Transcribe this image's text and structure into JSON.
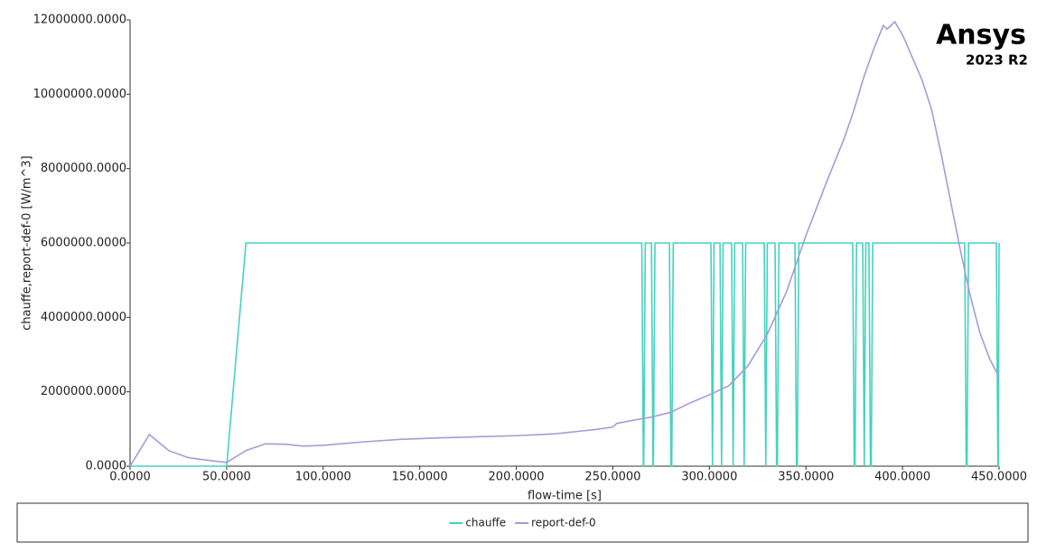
{
  "chart_data": {
    "type": "line",
    "x_label": "flow-time [s]",
    "y_label": "chauffe,report-def-0 [W/m^3]",
    "logo": {
      "brand": "Ansys",
      "version": "2023 R2"
    },
    "xlim": [
      0,
      450
    ],
    "ylim": [
      0,
      12000000
    ],
    "xticks": [
      {
        "value": 0,
        "label": "0.0000"
      },
      {
        "value": 50,
        "label": "50.0000"
      },
      {
        "value": 100,
        "label": "100.0000"
      },
      {
        "value": 150,
        "label": "150.0000"
      },
      {
        "value": 200,
        "label": "200.0000"
      },
      {
        "value": 250,
        "label": "250.0000"
      },
      {
        "value": 300,
        "label": "300.0000"
      },
      {
        "value": 350,
        "label": "350.0000"
      },
      {
        "value": 400,
        "label": "400.0000"
      },
      {
        "value": 450,
        "label": "450.0000"
      }
    ],
    "yticks": [
      {
        "value": 0,
        "label": "0.0000"
      },
      {
        "value": 2000000,
        "label": "2000000.0000"
      },
      {
        "value": 4000000,
        "label": "4000000.0000"
      },
      {
        "value": 6000000,
        "label": "6000000.0000"
      },
      {
        "value": 8000000,
        "label": "8000000.0000"
      },
      {
        "value": 10000000,
        "label": "10000000.0000"
      },
      {
        "value": 12000000,
        "label": "12000000.0000"
      }
    ],
    "legend": "bottom",
    "series": [
      {
        "name": "chauffe",
        "color": "#45d2bf",
        "x": [
          0,
          50,
          60,
          265,
          265.8,
          266,
          266.8,
          270,
          270.8,
          271,
          271.8,
          279.3,
          280.1,
          280.5,
          281.3,
          300.8,
          301.6,
          301.6,
          302.4,
          305.5,
          306.3,
          306.3,
          307.1,
          311.5,
          312.3,
          312.3,
          313.1,
          317.2,
          318,
          318,
          318.8,
          328.4,
          329.2,
          329.2,
          330,
          334,
          334.8,
          335.2,
          336,
          344.3,
          345.1,
          345.5,
          346.3,
          374.2,
          375,
          375.4,
          376.2,
          379.4,
          380.2,
          380.2,
          381,
          382.6,
          383.4,
          383.8,
          384.6,
          432.2,
          433,
          433.4,
          434.2,
          448.6,
          449.4,
          449.6,
          450
        ],
        "values": [
          0,
          0,
          6000000,
          6000000,
          0,
          0,
          6000000,
          6000000,
          0,
          0,
          6000000,
          6000000,
          0,
          0,
          6000000,
          6000000,
          0,
          0,
          6000000,
          6000000,
          0,
          0,
          6000000,
          6000000,
          0,
          0,
          6000000,
          6000000,
          0,
          0,
          6000000,
          6000000,
          0,
          0,
          6000000,
          6000000,
          0,
          0,
          6000000,
          6000000,
          0,
          0,
          6000000,
          6000000,
          0,
          0,
          6000000,
          6000000,
          0,
          0,
          6000000,
          6000000,
          0,
          0,
          6000000,
          6000000,
          0,
          0,
          6000000,
          6000000,
          0,
          0,
          6000000
        ]
      },
      {
        "name": "report-def-0",
        "color": "#a79ada",
        "x": [
          0,
          10,
          20,
          30,
          40,
          50,
          60,
          70,
          80,
          90,
          100,
          120,
          140,
          160,
          180,
          200,
          220,
          240,
          250,
          252,
          260,
          270,
          280,
          290,
          300,
          310,
          320,
          330,
          340,
          350,
          360,
          370,
          375,
          380,
          385,
          390,
          392,
          396,
          400,
          405,
          410,
          415,
          420,
          425,
          430,
          435,
          440,
          445,
          450
        ],
        "values": [
          0,
          850000,
          420000,
          230000,
          160000,
          100000,
          420000,
          600000,
          590000,
          540000,
          560000,
          650000,
          720000,
          760000,
          790000,
          820000,
          870000,
          980000,
          1050000,
          1150000,
          1230000,
          1320000,
          1450000,
          1700000,
          1920000,
          2160000,
          2700000,
          3550000,
          4700000,
          6200000,
          7550000,
          8840000,
          9600000,
          10470000,
          11200000,
          11850000,
          11750000,
          11950000,
          11600000,
          11000000,
          10400000,
          9600000,
          8400000,
          7100000,
          5800000,
          4600000,
          3600000,
          2900000,
          2400000
        ]
      }
    ]
  }
}
